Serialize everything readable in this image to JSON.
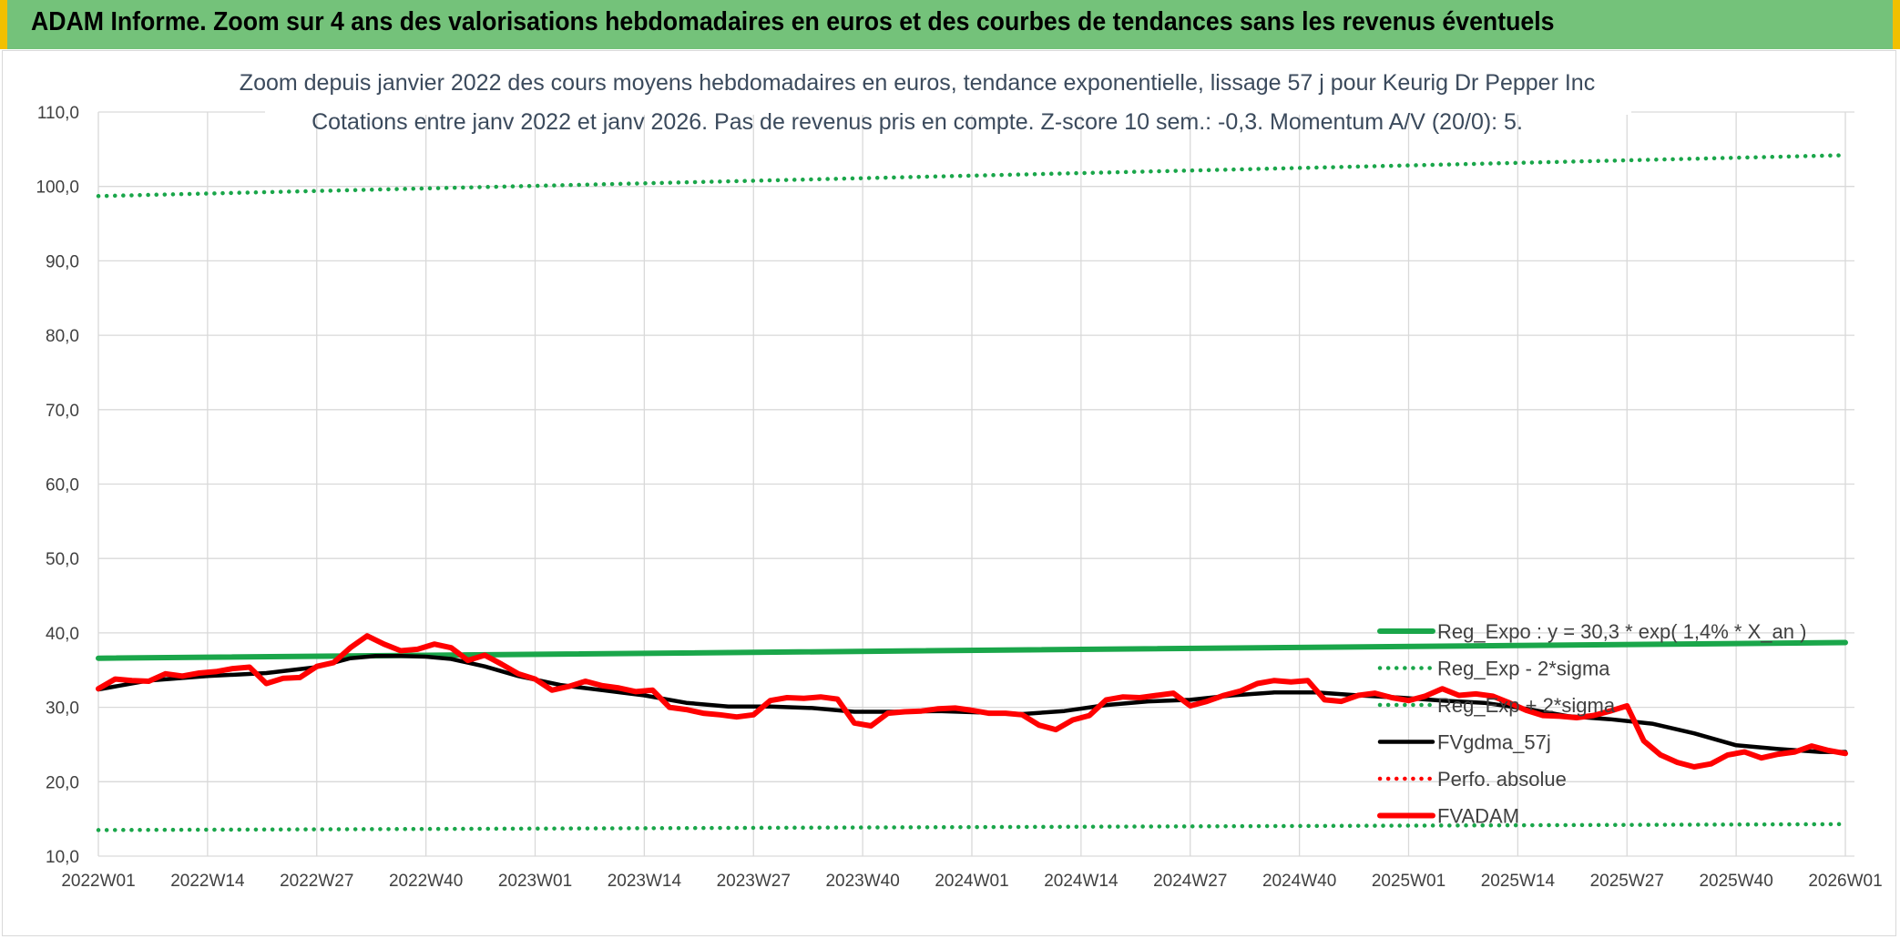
{
  "banner": {
    "title": "ADAM Informe. Zoom sur 4 ans des valorisations hebdomadaires en euros et des courbes de tendances sans les revenus éventuels",
    "background": "#74c27a",
    "border_color": "#f2c000"
  },
  "chart_data": {
    "type": "line",
    "title": "Zoom depuis janvier 2022 des cours moyens hebdomadaires en euros, tendance exponentielle, lissage 57 j pour Keurig Dr Pepper Inc",
    "subtitle": "Cotations entre janv 2022 et janv 2026. Pas de revenus pris en compte. Z-score 10 sem.: -0,3. Momentum A/V (20/0): 5.",
    "xlabel": "",
    "ylabel": "",
    "ylim": [
      10,
      110
    ],
    "ytick_labels": [
      "10,0",
      "20,0",
      "30,0",
      "40,0",
      "50,0",
      "60,0",
      "70,0",
      "80,0",
      "90,0",
      "100,0",
      "110,0"
    ],
    "x_range": [
      0,
      208
    ],
    "x_tick_positions": [
      0,
      13,
      26,
      39,
      52,
      65,
      78,
      91,
      104,
      117,
      130,
      143,
      156,
      169,
      182,
      195,
      208
    ],
    "x_tick_labels": [
      "2022W01",
      "2022W14",
      "2022W27",
      "2022W40",
      "2023W01",
      "2023W14",
      "2023W27",
      "2023W40",
      "2024W01",
      "2024W14",
      "2024W27",
      "2024W40",
      "2025W01",
      "2025W14",
      "2025W27",
      "2025W40",
      "2026W01"
    ],
    "grid": true,
    "legend_position": "bottom-right",
    "series": [
      {
        "name": "Reg_Expo : y = 30,3 * exp( 1,4% * X_an )",
        "color": "#1aa64a",
        "style": "solid-thick",
        "x": [
          0,
          208
        ],
        "values": [
          36.6,
          38.7
        ]
      },
      {
        "name": "Reg_Exp - 2*sigma",
        "color": "#1aa64a",
        "style": "dotted",
        "x": [
          0,
          208
        ],
        "values": [
          13.5,
          14.3
        ]
      },
      {
        "name": "Reg_Exp + 2*sigma",
        "color": "#1aa64a",
        "style": "dotted",
        "x": [
          0,
          208
        ],
        "values": [
          98.7,
          104.2
        ]
      },
      {
        "name": "FVgdma_57j",
        "color": "#000000",
        "style": "solid",
        "x": [
          0,
          6,
          13,
          20,
          26,
          30,
          33,
          36,
          39,
          42,
          46,
          50,
          55,
          60,
          65,
          70,
          75,
          80,
          85,
          90,
          95,
          100,
          105,
          110,
          115,
          120,
          125,
          130,
          135,
          140,
          145,
          150,
          155,
          160,
          165,
          170,
          175,
          180,
          185,
          190,
          195,
          200,
          205,
          208
        ],
        "values": [
          32.4,
          33.6,
          34.2,
          34.6,
          35.4,
          36.6,
          36.9,
          36.9,
          36.8,
          36.5,
          35.5,
          34.2,
          33.0,
          32.3,
          31.6,
          30.6,
          30.1,
          30.1,
          29.9,
          29.4,
          29.4,
          29.5,
          29.3,
          29.1,
          29.5,
          30.3,
          30.8,
          31.0,
          31.6,
          32.0,
          32.0,
          31.6,
          31.3,
          30.9,
          30.6,
          29.8,
          28.8,
          28.4,
          27.8,
          26.5,
          24.9,
          24.4,
          24.0,
          24.0
        ]
      },
      {
        "name": "Perfo. absolue",
        "color": "#ff0000",
        "style": "dotted",
        "x": [],
        "values": []
      },
      {
        "name": "FVADAM",
        "color": "#ff0000",
        "style": "solid-thick",
        "x": [
          0,
          2,
          4,
          6,
          8,
          10,
          12,
          14,
          16,
          18,
          20,
          22,
          24,
          26,
          28,
          30,
          32,
          34,
          36,
          38,
          40,
          42,
          44,
          46,
          48,
          50,
          52,
          54,
          56,
          58,
          60,
          62,
          64,
          66,
          68,
          70,
          72,
          74,
          76,
          78,
          80,
          82,
          84,
          86,
          88,
          90,
          92,
          94,
          96,
          98,
          100,
          102,
          104,
          106,
          108,
          110,
          112,
          114,
          116,
          118,
          120,
          122,
          124,
          126,
          128,
          130,
          132,
          134,
          136,
          138,
          140,
          142,
          144,
          146,
          148,
          150,
          152,
          154,
          156,
          158,
          160,
          162,
          164,
          166,
          168,
          170,
          172,
          174,
          176,
          178,
          180,
          182,
          184,
          186,
          188,
          190,
          192,
          194,
          196,
          198,
          200,
          202,
          204,
          206,
          208
        ],
        "values": [
          32.5,
          33.8,
          33.6,
          33.5,
          34.5,
          34.2,
          34.6,
          34.8,
          35.2,
          35.4,
          33.2,
          33.9,
          34.0,
          35.5,
          36.0,
          38.0,
          39.6,
          38.5,
          37.6,
          37.8,
          38.5,
          38.0,
          36.3,
          37.0,
          35.8,
          34.5,
          33.8,
          32.3,
          32.8,
          33.5,
          32.9,
          32.6,
          32.1,
          32.3,
          30.0,
          29.7,
          29.2,
          29.0,
          28.7,
          29.0,
          30.9,
          31.3,
          31.2,
          31.4,
          31.1,
          27.9,
          27.5,
          29.2,
          29.4,
          29.5,
          29.8,
          29.9,
          29.6,
          29.2,
          29.2,
          29.0,
          27.6,
          27.0,
          28.3,
          28.9,
          31.0,
          31.4,
          31.3,
          31.6,
          31.9,
          30.2,
          30.8,
          31.6,
          32.2,
          33.2,
          33.6,
          33.4,
          33.6,
          31.0,
          30.8,
          31.6,
          31.9,
          31.3,
          30.9,
          31.5,
          32.5,
          31.6,
          31.8,
          31.5,
          30.6,
          29.6,
          28.9,
          28.8,
          28.6,
          28.9,
          29.5,
          30.2,
          25.5,
          23.6,
          22.6,
          22.0,
          22.4,
          23.6,
          24.0,
          23.2,
          23.7,
          24.0,
          24.8,
          24.2,
          23.8
        ]
      }
    ]
  }
}
